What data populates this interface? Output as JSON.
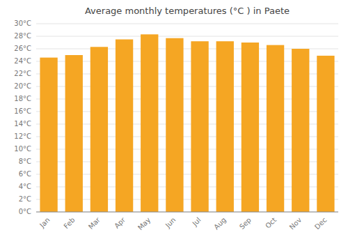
{
  "chart_data": {
    "type": "bar",
    "title": "Average monthly temperatures (°C ) in Paete",
    "categories": [
      "Jan",
      "Feb",
      "Mar",
      "Apr",
      "May",
      "Jun",
      "Jul",
      "Aug",
      "Sep",
      "Oct",
      "Nov",
      "Dec"
    ],
    "values": [
      24.6,
      25.0,
      26.3,
      27.5,
      28.3,
      27.7,
      27.2,
      27.2,
      27.0,
      26.6,
      26.0,
      24.9
    ],
    "color": "#F5A623",
    "ylim": [
      0,
      30
    ],
    "yticks": [
      {
        "value": 0,
        "label": "0°C"
      },
      {
        "value": 2,
        "label": "2°C"
      },
      {
        "value": 4,
        "label": "4°C"
      },
      {
        "value": 6,
        "label": "6°C"
      },
      {
        "value": 8,
        "label": "8°C"
      },
      {
        "value": 10,
        "label": "10°C"
      },
      {
        "value": 12,
        "label": "12°C"
      },
      {
        "value": 14,
        "label": "14°C"
      },
      {
        "value": 16,
        "label": "16°C"
      },
      {
        "value": 18,
        "label": "18°C"
      },
      {
        "value": 20,
        "label": "20°C"
      },
      {
        "value": 22,
        "label": "22°C"
      },
      {
        "value": 24,
        "label": "24°C"
      },
      {
        "value": 26,
        "label": "26°C"
      },
      {
        "value": 28,
        "label": "28°C"
      },
      {
        "value": 30,
        "label": "30°C"
      }
    ],
    "grid": true
  }
}
